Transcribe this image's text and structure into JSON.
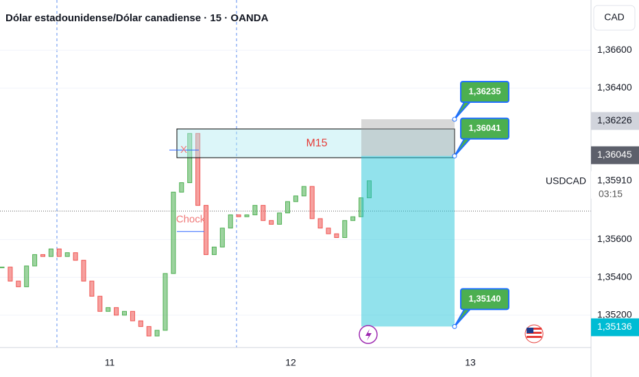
{
  "chart_data": {
    "type": "candlestick",
    "title": "Dólar estadounidense/Dólar canadiense · 15 · OANDA",
    "currency": "CAD",
    "symbol": "USDCAD",
    "countdown": "03:15",
    "up_color": "#4caf50",
    "down_color": "#ef5350",
    "closes": [
      1.35454,
      1.3538,
      1.3535,
      1.3546,
      1.3552,
      1.3551,
      1.3555,
      1.3551,
      1.3553,
      1.3549,
      1.3538,
      1.353,
      1.3522,
      1.3524,
      1.352,
      1.3522,
      1.3517,
      1.3514,
      1.3509,
      1.3512,
      1.3542,
      1.3585,
      1.359,
      1.3616,
      1.3578,
      1.3552,
      1.3556,
      1.3566,
      1.3573,
      1.3572,
      1.3573,
      1.3578,
      1.357,
      1.3568,
      1.3574,
      1.358,
      1.3583,
      1.3588,
      1.3571,
      1.3566,
      1.3563,
      1.3561,
      1.357,
      1.3572,
      1.3582,
      1.3591
    ],
    "ylim": [
      1.35,
      1.368
    ],
    "yticks": [
      {
        "value": 1.366,
        "label": "1,36600"
      },
      {
        "value": 1.364,
        "label": "1,36400"
      },
      {
        "value": 1.356,
        "label": "1,35600"
      },
      {
        "value": 1.354,
        "label": "1,35400"
      },
      {
        "value": 1.352,
        "label": "1,35200"
      }
    ],
    "x_labels": [
      "11",
      "12",
      "13"
    ],
    "price_tags": [
      {
        "value": 1.36226,
        "label": "1,36226",
        "color": "#d1d4dc"
      },
      {
        "value": 1.36045,
        "label": "1,36045",
        "color": "#5d606b"
      },
      {
        "value": 1.35136,
        "label": "1,35136",
        "color": "#00bcd4"
      }
    ],
    "last_price": {
      "value": 1.3591,
      "label": "1,35910"
    },
    "zone": {
      "label": "M15",
      "range": [
        1.36032,
        1.36184
      ]
    },
    "annotations": [
      {
        "label": "X",
        "value": 1.36072
      },
      {
        "label": "Chock",
        "value": 1.35642
      }
    ],
    "position": {
      "stop": {
        "value": 1.36235,
        "label": "1,36235"
      },
      "entry": {
        "value": 1.36041,
        "label": "1,36041"
      },
      "target": {
        "value": 1.3514,
        "label": "1,35140"
      }
    }
  }
}
